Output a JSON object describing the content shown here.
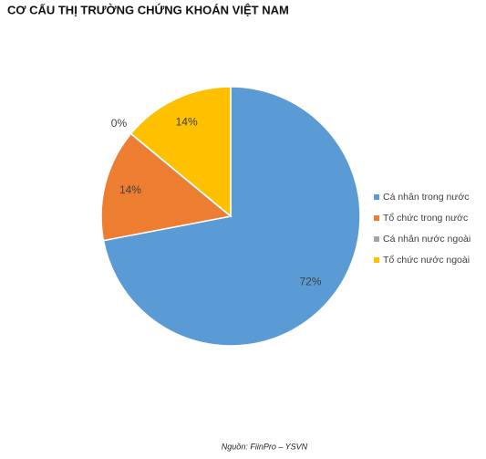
{
  "chart_data": {
    "type": "pie",
    "title": "CƠ CẤU THỊ TRƯỜNG CHỨNG KHOÁN VIỆT NAM",
    "categories": [
      "Cá nhân trong nước",
      "Tổ chức trong nước",
      "Cá nhân nước ngoài",
      "Tổ chức nước ngoài"
    ],
    "values": [
      72,
      14,
      0,
      14
    ],
    "value_labels": [
      "72%",
      "14%",
      "0%",
      "14%"
    ],
    "colors": [
      "#5b9bd5",
      "#ed7d31",
      "#a5a5a5",
      "#ffc000"
    ],
    "legend": "right",
    "source": "Nguồn: FiinPro – YSVN"
  }
}
